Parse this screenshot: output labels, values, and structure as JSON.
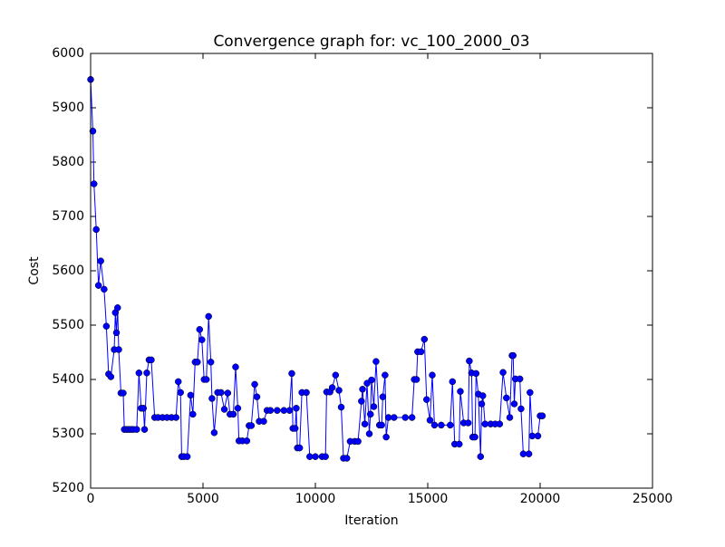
{
  "chart_data": {
    "type": "line",
    "title": "Convergence graph for: vc_100_2000_03",
    "x_label": "Iteration",
    "y_label": "Cost",
    "xlim": [
      0,
      25000
    ],
    "xticks": [
      0,
      5000,
      10000,
      15000,
      20000,
      25000
    ],
    "ylim": [
      5200,
      6000
    ],
    "yticks": [
      5200,
      5300,
      5400,
      5500,
      5600,
      5700,
      5800,
      5900,
      6000
    ],
    "series": [
      {
        "color": "#0000ff",
        "x": [
          0,
          100,
          150,
          250,
          350,
          450,
          600,
          700,
          800,
          900,
          1050,
          1100,
          1150,
          1200,
          1250,
          1350,
          1450,
          1500,
          1600,
          1700,
          1800,
          1900,
          2050,
          2150,
          2250,
          2350,
          2400,
          2500,
          2600,
          2700,
          2850,
          3000,
          3200,
          3400,
          3600,
          3800,
          3900,
          4000,
          4050,
          4150,
          4300,
          4450,
          4550,
          4650,
          4750,
          4850,
          4950,
          5050,
          5150,
          5250,
          5350,
          5400,
          5500,
          5650,
          5800,
          5950,
          6100,
          6200,
          6350,
          6450,
          6550,
          6600,
          6750,
          6950,
          7050,
          7150,
          7300,
          7400,
          7500,
          7700,
          7850,
          8000,
          8300,
          8600,
          8850,
          8950,
          9000,
          9100,
          9150,
          9200,
          9300,
          9400,
          9600,
          9750,
          10000,
          10300,
          10450,
          10500,
          10650,
          10750,
          10900,
          11050,
          11150,
          11250,
          11400,
          11550,
          11750,
          11900,
          12050,
          12100,
          12200,
          12300,
          12400,
          12450,
          12500,
          12600,
          12700,
          12850,
          12950,
          13000,
          13100,
          13150,
          13250,
          13500,
          14000,
          14300,
          14400,
          14500,
          14550,
          14700,
          14850,
          14950,
          15100,
          15200,
          15300,
          15600,
          16000,
          16100,
          16200,
          16400,
          16450,
          16600,
          16800,
          16850,
          16950,
          17000,
          17100,
          17150,
          17250,
          17350,
          17400,
          17450,
          17550,
          17800,
          18000,
          18200,
          18350,
          18500,
          18650,
          18750,
          18800,
          18850,
          18900,
          19100,
          19150,
          19250,
          19500,
          19550,
          19650,
          19900,
          20000,
          20100
        ],
        "values": [
          5952,
          5857,
          5760,
          5676,
          5573,
          5618,
          5566,
          5498,
          5410,
          5405,
          5455,
          5523,
          5486,
          5532,
          5455,
          5375,
          5375,
          5308,
          5308,
          5308,
          5308,
          5308,
          5308,
          5412,
          5347,
          5347,
          5308,
          5412,
          5436,
          5436,
          5330,
          5330,
          5330,
          5330,
          5330,
          5330,
          5396,
          5376,
          5258,
          5258,
          5258,
          5371,
          5336,
          5432,
          5432,
          5492,
          5473,
          5400,
          5400,
          5516,
          5432,
          5365,
          5302,
          5376,
          5376,
          5345,
          5375,
          5336,
          5336,
          5423,
          5347,
          5287,
          5287,
          5287,
          5315,
          5315,
          5391,
          5368,
          5323,
          5323,
          5343,
          5343,
          5343,
          5343,
          5343,
          5411,
          5310,
          5310,
          5347,
          5274,
          5274,
          5376,
          5376,
          5258,
          5258,
          5258,
          5258,
          5377,
          5377,
          5385,
          5408,
          5380,
          5349,
          5255,
          5255,
          5286,
          5286,
          5286,
          5360,
          5382,
          5318,
          5393,
          5300,
          5336,
          5399,
          5350,
          5433,
          5316,
          5316,
          5368,
          5408,
          5294,
          5330,
          5330,
          5330,
          5330,
          5400,
          5400,
          5451,
          5451,
          5474,
          5363,
          5325,
          5408,
          5316,
          5316,
          5316,
          5396,
          5281,
          5281,
          5378,
          5320,
          5320,
          5434,
          5412,
          5294,
          5294,
          5411,
          5373,
          5258,
          5355,
          5370,
          5318,
          5318,
          5318,
          5318,
          5413,
          5366,
          5330,
          5444,
          5444,
          5355,
          5401,
          5401,
          5346,
          5263,
          5263,
          5376,
          5296,
          5296,
          5333,
          5333
        ]
      }
    ]
  }
}
